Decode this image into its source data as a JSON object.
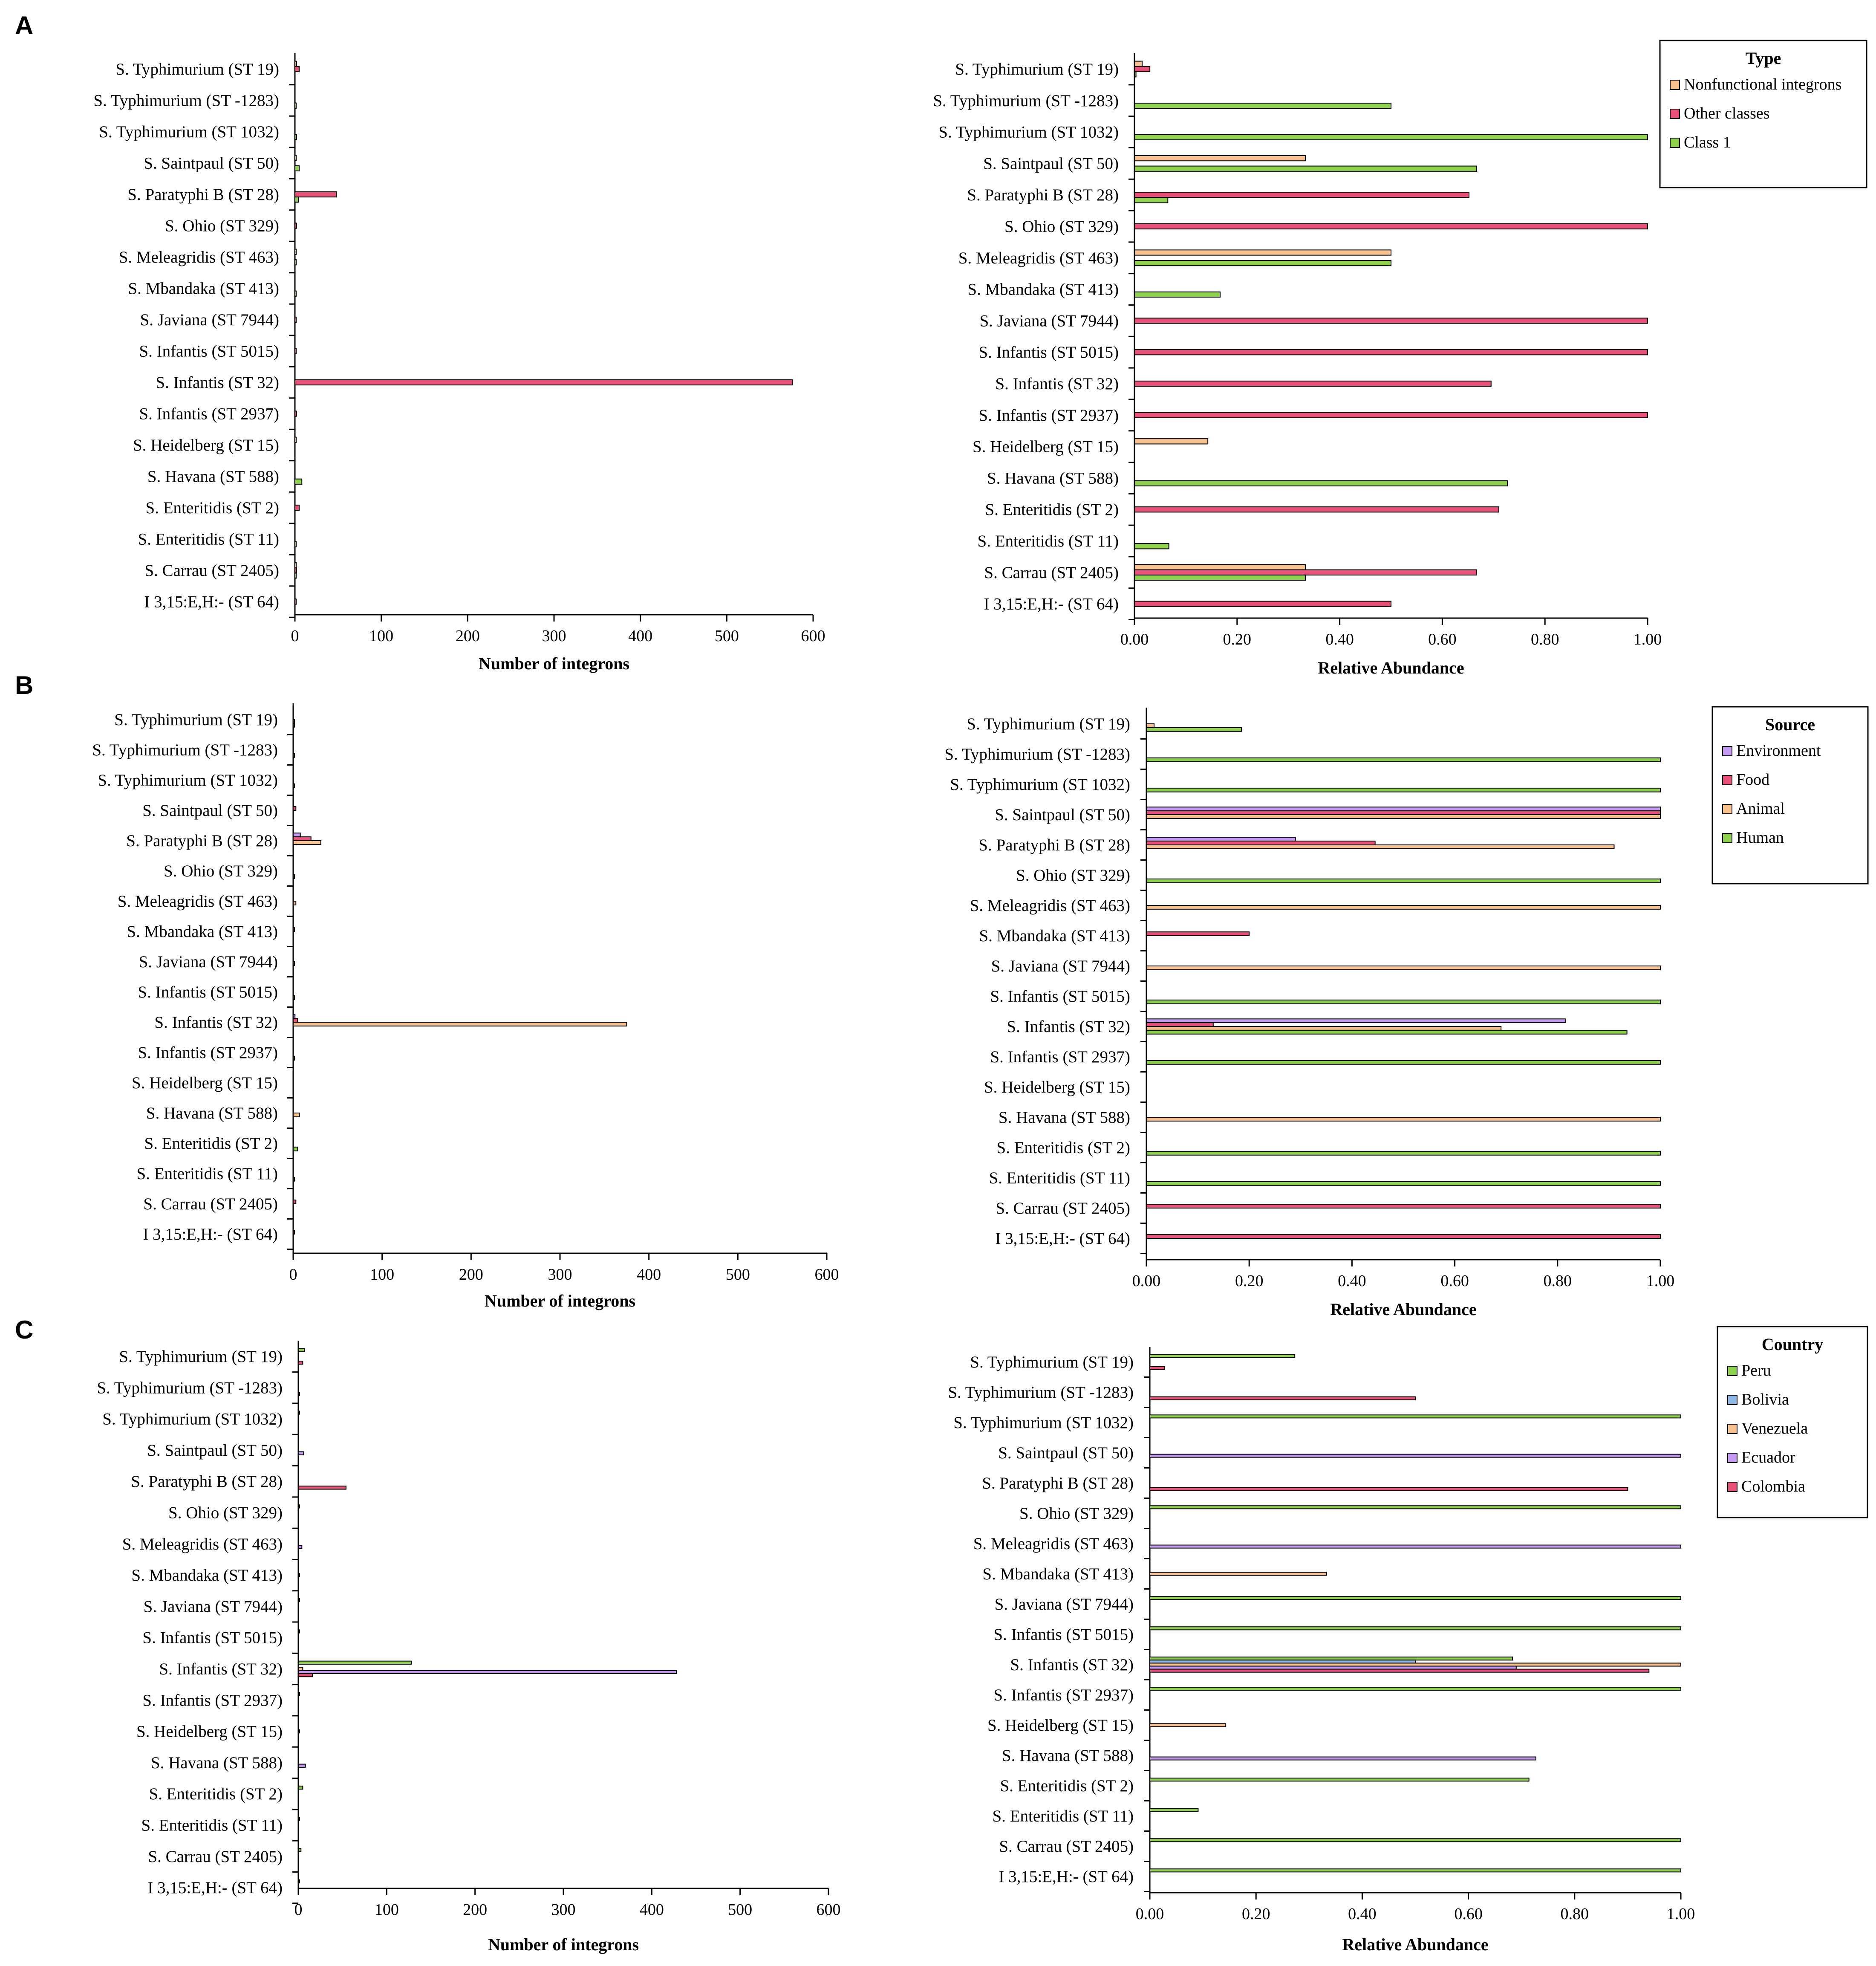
{
  "colors": {
    "Class 1": "#8ed24e",
    "Other classes": "#e8527a",
    "Nonfunctional integrons": "#f9c28e",
    "Human": "#8ed24e",
    "Animal": "#f9c28e",
    "Food": "#e8527a",
    "Environment": "#c49af2",
    "Peru": "#8ed24e",
    "Bolivia": "#8fb7e6",
    "Venezuela": "#f9c28e",
    "Ecuador": "#c49af2",
    "Colombia": "#e8527a"
  },
  "chart_data": [
    {
      "id": "A-count",
      "panel": "A",
      "type": "bar",
      "orientation": "horizontal",
      "metric": "count",
      "title": "",
      "xlabel": "Number of integrons",
      "ylabel": "",
      "xlim": [
        0,
        600
      ],
      "xticks": [
        0,
        100,
        200,
        300,
        400,
        500,
        600
      ],
      "categories": [
        "S. Typhimurium (ST 19)",
        "S. Typhimurium (ST -1283)",
        "S. Typhimurium (ST 1032)",
        "S. Saintpaul (ST 50)",
        "S. Paratyphi B (ST 28)",
        "S. Ohio (ST 329)",
        "S. Meleagridis (ST 463)",
        "S. Mbandaka (ST 413)",
        "S. Javiana (ST 7944)",
        "S. Infantis (ST 5015)",
        "S. Infantis (ST 32)",
        "S. Infantis (ST 2937)",
        "S. Heidelberg (ST 15)",
        "S. Havana (ST 588)",
        "S. Enteritidis (ST 2)",
        "S. Enteritidis (ST 11)",
        "S. Carrau (ST 2405)",
        "I 3,15:E,H:- (ST 64)"
      ],
      "series": [
        {
          "name": "Nonfunctional integrons",
          "values": [
            2,
            0,
            0,
            1,
            0,
            0,
            1,
            0,
            0,
            0,
            0,
            0,
            1,
            0,
            0,
            0,
            1,
            0
          ]
        },
        {
          "name": "Other classes",
          "values": [
            5,
            0,
            0,
            0,
            48,
            2,
            0,
            0,
            1,
            1,
            576,
            2,
            0,
            0,
            5,
            0,
            2,
            1
          ]
        },
        {
          "name": "Class 1",
          "values": [
            0,
            1,
            2,
            5,
            4,
            0,
            1,
            1,
            0,
            0,
            0,
            0,
            0,
            8,
            0,
            1,
            1,
            0
          ]
        }
      ],
      "legend": null
    },
    {
      "id": "A-rel",
      "panel": "A",
      "type": "bar",
      "orientation": "horizontal",
      "metric": "relative",
      "title": "",
      "xlabel": "Relative Abundance",
      "ylabel": "",
      "xlim": [
        0,
        1
      ],
      "xticks": [
        "0.00",
        "0.20",
        "0.40",
        "0.60",
        "0.80",
        "1.00"
      ],
      "categories": [
        "S. Typhimurium (ST 19)",
        "S. Typhimurium (ST -1283)",
        "S. Typhimurium (ST 1032)",
        "S. Saintpaul (ST 50)",
        "S. Paratyphi B (ST 28)",
        "S. Ohio (ST 329)",
        "S. Meleagridis (ST 463)",
        "S. Mbandaka (ST 413)",
        "S. Javiana (ST 7944)",
        "S. Infantis (ST 5015)",
        "S. Infantis (ST 32)",
        "S. Infantis (ST 2937)",
        "S. Heidelberg (ST 15)",
        "S. Havana (ST 588)",
        "S. Enteritidis (ST 2)",
        "S. Enteritidis (ST 11)",
        "S. Carrau (ST 2405)",
        "I 3,15:E,H:- (ST 64)"
      ],
      "series": [
        {
          "name": "Nonfunctional integrons",
          "values": [
            0.015,
            0,
            0,
            0.333,
            0,
            0,
            0.5,
            0,
            0,
            0,
            0,
            0,
            0.143,
            0,
            0,
            0,
            0.333,
            0
          ]
        },
        {
          "name": "Other classes",
          "values": [
            0.03,
            0,
            0,
            0,
            0.652,
            1.0,
            0,
            0,
            1.0,
            1.0,
            0.695,
            1.0,
            0,
            0,
            0.71,
            0,
            0.667,
            0.5
          ]
        },
        {
          "name": "Class 1",
          "values": [
            0.003,
            0.5,
            1.0,
            0.667,
            0.065,
            0,
            0.5,
            0.167,
            0,
            0,
            0,
            0,
            0,
            0.727,
            0,
            0.067,
            0.333,
            0
          ]
        }
      ],
      "legend": {
        "title": "Type",
        "placement": "top-right",
        "entries": [
          "Nonfunctional integrons",
          "Other classes",
          "Class 1"
        ]
      }
    },
    {
      "id": "B-count",
      "panel": "B",
      "type": "bar",
      "orientation": "horizontal",
      "metric": "count",
      "title": "",
      "xlabel": "Number of integrons",
      "ylabel": "",
      "xlim": [
        0,
        600
      ],
      "xticks": [
        0,
        100,
        200,
        300,
        400,
        500,
        600
      ],
      "categories": [
        "S. Typhimurium (ST 19)",
        "S. Typhimurium (ST -1283)",
        "S. Typhimurium (ST 1032)",
        "S. Saintpaul (ST 50)",
        "S. Paratyphi B (ST 28)",
        "S. Ohio (ST 329)",
        "S. Meleagridis (ST 463)",
        "S. Mbandaka (ST 413)",
        "S. Javiana (ST 7944)",
        "S. Infantis (ST 5015)",
        "S. Infantis (ST 32)",
        "S. Infantis (ST 2937)",
        "S. Heidelberg (ST 15)",
        "S. Havana (ST 588)",
        "S. Enteritidis (ST 2)",
        "S. Enteritidis (ST 11)",
        "S. Carrau (ST 2405)",
        "I 3,15:E,H:- (ST 64)"
      ],
      "series": [
        {
          "name": "Environment",
          "values": [
            0,
            0,
            0,
            0,
            8,
            0,
            0,
            0,
            0,
            0,
            2,
            0,
            0,
            0,
            0,
            0,
            0,
            0
          ]
        },
        {
          "name": "Food",
          "values": [
            0,
            0,
            0,
            3,
            20,
            0,
            0,
            1,
            0,
            0,
            5,
            0,
            0,
            0,
            0,
            0,
            3,
            1
          ]
        },
        {
          "name": "Animal",
          "values": [
            1,
            0,
            0,
            0,
            31,
            0,
            3,
            0,
            1,
            0,
            375,
            0,
            0,
            7,
            0,
            0,
            0,
            0
          ]
        },
        {
          "name": "Human",
          "values": [
            1,
            1,
            1,
            0,
            0,
            1,
            0,
            0,
            0,
            1,
            0,
            1,
            0,
            0,
            5,
            1,
            0,
            0
          ]
        }
      ],
      "legend": null
    },
    {
      "id": "B-rel",
      "panel": "B",
      "type": "bar",
      "orientation": "horizontal",
      "metric": "relative",
      "title": "",
      "xlabel": "Relative Abundance",
      "ylabel": "",
      "xlim": [
        0,
        1
      ],
      "xticks": [
        "0.00",
        "0.20",
        "0.40",
        "0.60",
        "0.80",
        "1.00"
      ],
      "categories": [
        "S. Typhimurium (ST 19)",
        "S. Typhimurium (ST -1283)",
        "S. Typhimurium (ST 1032)",
        "S. Saintpaul (ST 50)",
        "S. Paratyphi B (ST 28)",
        "S. Ohio (ST 329)",
        "S. Meleagridis (ST 463)",
        "S. Mbandaka (ST 413)",
        "S. Javiana (ST 7944)",
        "S. Infantis (ST 5015)",
        "S. Infantis (ST 32)",
        "S. Infantis (ST 2937)",
        "S. Heidelberg (ST 15)",
        "S. Havana (ST 588)",
        "S. Enteritidis (ST 2)",
        "S. Enteritidis (ST 11)",
        "S. Carrau (ST 2405)",
        "I 3,15:E,H:- (ST 64)"
      ],
      "series": [
        {
          "name": "Environment",
          "values": [
            0,
            0,
            0,
            1.0,
            0.29,
            0,
            0,
            0,
            0,
            0,
            0.815,
            0,
            0,
            0,
            0,
            0,
            0,
            0
          ]
        },
        {
          "name": "Food",
          "values": [
            0,
            0,
            0,
            1.0,
            0.445,
            0,
            0,
            0.2,
            0,
            0,
            0.13,
            0,
            0,
            0,
            0,
            0,
            1.0,
            1.0
          ]
        },
        {
          "name": "Animal",
          "values": [
            0.015,
            0,
            0,
            1.0,
            0.91,
            0,
            1.0,
            0,
            1.0,
            0,
            0.69,
            0,
            0,
            1.0,
            0,
            0,
            0,
            0
          ]
        },
        {
          "name": "Human",
          "values": [
            0.185,
            1.0,
            1.0,
            0,
            0,
            1.0,
            0,
            0,
            0,
            1.0,
            0.935,
            1.0,
            0,
            0,
            1.0,
            1.0,
            0,
            0
          ]
        }
      ],
      "legend": {
        "title": "Source",
        "placement": "top-right",
        "entries": [
          "Environment",
          "Food",
          "Animal",
          "Human"
        ]
      }
    },
    {
      "id": "C-count",
      "panel": "C",
      "type": "bar",
      "orientation": "horizontal",
      "metric": "count",
      "title": "",
      "xlabel": "Number of integrons",
      "ylabel": "",
      "xlim": [
        0,
        600
      ],
      "xticks": [
        0,
        100,
        200,
        300,
        400,
        500,
        600
      ],
      "categories": [
        "S. Typhimurium (ST 19)",
        "S. Typhimurium (ST -1283)",
        "S. Typhimurium (ST 1032)",
        "S. Saintpaul (ST 50)",
        "S. Paratyphi B (ST 28)",
        "S. Ohio (ST 329)",
        "S. Meleagridis (ST 463)",
        "S. Mbandaka (ST 413)",
        "S. Javiana (ST 7944)",
        "S. Infantis (ST 5015)",
        "S. Infantis (ST 32)",
        "S. Infantis (ST 2937)",
        "S. Heidelberg (ST 15)",
        "S. Havana (ST 588)",
        "S. Enteritidis (ST 2)",
        "S. Enteritidis (ST 11)",
        "S. Carrau (ST 2405)",
        "I 3,15:E,H:- (ST 64)"
      ],
      "series": [
        {
          "name": "Peru",
          "values": [
            7,
            0,
            1,
            0,
            0,
            1,
            0,
            0,
            1,
            1,
            128,
            1,
            0,
            0,
            5,
            1,
            3,
            1
          ]
        },
        {
          "name": "Bolivia",
          "values": [
            0,
            0,
            0,
            0,
            0,
            0,
            0,
            0,
            0,
            0,
            0,
            0,
            0,
            0,
            0,
            0,
            0,
            0
          ]
        },
        {
          "name": "Venezuela",
          "values": [
            0,
            0,
            0,
            0,
            0,
            0,
            0,
            1,
            0,
            0,
            5,
            0,
            1,
            0,
            0,
            0,
            0,
            0
          ]
        },
        {
          "name": "Ecuador",
          "values": [
            0,
            0,
            0,
            6,
            0,
            0,
            4,
            0,
            0,
            0,
            428,
            0,
            0,
            8,
            0,
            0,
            0,
            0
          ]
        },
        {
          "name": "Colombia",
          "values": [
            5,
            1,
            0,
            0,
            54,
            0,
            0,
            0,
            0,
            0,
            16,
            0,
            0,
            0,
            0,
            0,
            0,
            0
          ]
        }
      ],
      "legend": null
    },
    {
      "id": "C-rel",
      "panel": "C",
      "type": "bar",
      "orientation": "horizontal",
      "metric": "relative",
      "title": "",
      "xlabel": "Relative Abundance",
      "ylabel": "",
      "xlim": [
        0,
        1
      ],
      "xticks": [
        "0.00",
        "0.20",
        "0.40",
        "0.60",
        "0.80",
        "1.00"
      ],
      "categories": [
        "S. Typhimurium (ST 19)",
        "S. Typhimurium (ST -1283)",
        "S. Typhimurium (ST 1032)",
        "S. Saintpaul (ST 50)",
        "S. Paratyphi B (ST 28)",
        "S. Ohio (ST 329)",
        "S. Meleagridis (ST 463)",
        "S. Mbandaka (ST 413)",
        "S. Javiana (ST 7944)",
        "S. Infantis (ST 5015)",
        "S. Infantis (ST 32)",
        "S. Infantis (ST 2937)",
        "S. Heidelberg (ST 15)",
        "S. Havana (ST 588)",
        "S. Enteritidis (ST 2)",
        "S. Enteritidis (ST 11)",
        "S. Carrau (ST 2405)",
        "I 3,15:E,H:- (ST 64)"
      ],
      "series": [
        {
          "name": "Peru",
          "values": [
            0.273,
            0,
            1.0,
            0,
            0,
            1.0,
            0,
            0,
            1.0,
            1.0,
            0.683,
            1.0,
            0,
            0,
            0.714,
            0.091,
            1.0,
            1.0
          ]
        },
        {
          "name": "Bolivia",
          "values": [
            0,
            0,
            0,
            0,
            0,
            0,
            0,
            0,
            0,
            0,
            0.5,
            0,
            0,
            0,
            0,
            0,
            0,
            0
          ]
        },
        {
          "name": "Venezuela",
          "values": [
            0,
            0,
            0,
            0,
            0,
            0,
            0,
            0.333,
            0,
            0,
            1.0,
            0,
            0.143,
            0,
            0,
            0,
            0,
            0
          ]
        },
        {
          "name": "Ecuador",
          "values": [
            0,
            0,
            0,
            1.0,
            0,
            0,
            1.0,
            0,
            0,
            0,
            0.69,
            0,
            0,
            0.727,
            0,
            0,
            0,
            0
          ]
        },
        {
          "name": "Colombia",
          "values": [
            0.028,
            0.5,
            0,
            0,
            0.9,
            0,
            0,
            0,
            0,
            0,
            0.94,
            0,
            0,
            0,
            0,
            0,
            0,
            0
          ]
        }
      ],
      "legend": {
        "title": "Country",
        "placement": "top-right",
        "entries": [
          "Peru",
          "Bolivia",
          "Venezuela",
          "Ecuador",
          "Colombia"
        ]
      }
    }
  ]
}
